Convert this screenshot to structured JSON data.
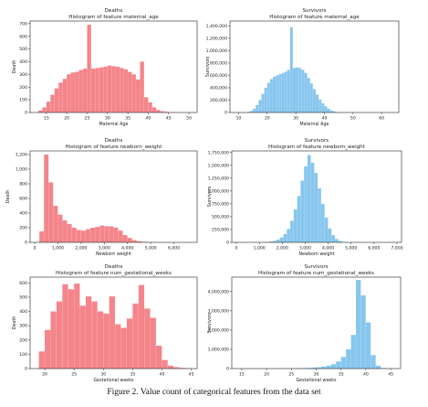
{
  "figure_caption": "Figure 2. Value count of categorical features from the data set",
  "colors": {
    "deaths": "#f4858a",
    "survivors": "#87c6ee",
    "axis": "#222222",
    "text": "#222222"
  },
  "chart_data": [
    {
      "type": "bar",
      "panel": "deaths-maternal-age",
      "title": "Deaths",
      "subtitle": "Histogram of feature maternal_age",
      "xlabel": "Maternal Age",
      "ylabel": "Death",
      "xlim": [
        11,
        52
      ],
      "ylim": [
        0,
        720
      ],
      "xticks": [
        15,
        20,
        25,
        30,
        35,
        40,
        45,
        50
      ],
      "xtick_labels": [
        "15",
        "20",
        "25",
        "30",
        "35",
        "40",
        "45",
        "50"
      ],
      "yticks": [
        0,
        100,
        200,
        300,
        400,
        500,
        600,
        700
      ],
      "ytick_labels": [
        "0",
        "100",
        "200",
        "300",
        "400",
        "500",
        "600",
        "700"
      ],
      "bin_start": 13,
      "bin_width": 1,
      "values": [
        15,
        40,
        85,
        140,
        190,
        235,
        265,
        300,
        315,
        320,
        335,
        345,
        690,
        345,
        350,
        355,
        360,
        370,
        365,
        360,
        350,
        340,
        320,
        300,
        260,
        400,
        120,
        80,
        40,
        20,
        10,
        5,
        2,
        1,
        0,
        0
      ]
    },
    {
      "type": "bar",
      "panel": "survivors-maternal-age",
      "title": "Survivors",
      "subtitle": "Histogram of feature maternal_age",
      "xlabel": "Maternal Age",
      "ylabel": "Survivors",
      "xlim": [
        7,
        66
      ],
      "ylim": [
        0,
        1480000
      ],
      "xticks": [
        10,
        20,
        30,
        40,
        50,
        60
      ],
      "xtick_labels": [
        "10",
        "20",
        "30",
        "40",
        "50",
        "60"
      ],
      "yticks": [
        0,
        200000,
        400000,
        600000,
        800000,
        1000000,
        1200000,
        1400000
      ],
      "ytick_labels": [
        "0",
        "200,000",
        "400,000",
        "600,000",
        "800,000",
        "1,000,000",
        "1,200,000",
        "1,400,000"
      ],
      "bin_start": 12,
      "bin_width": 1,
      "values": [
        2000,
        8000,
        25000,
        60000,
        120000,
        200000,
        300000,
        400000,
        480000,
        540000,
        580000,
        600000,
        620000,
        640000,
        660000,
        690000,
        1380000,
        720000,
        730000,
        720000,
        690000,
        640000,
        560000,
        470000,
        380000,
        290000,
        210000,
        150000,
        100000,
        60000,
        35000,
        18000,
        9000,
        4000,
        2000,
        1000,
        500,
        200,
        100,
        50,
        0,
        0,
        0,
        0,
        0,
        0,
        0,
        0
      ]
    },
    {
      "type": "bar",
      "panel": "deaths-newborn-weight",
      "title": "Deaths",
      "subtitle": "Histogram of feature newborn_weight",
      "xlabel": "Newborn weight",
      "ylabel": "Death",
      "xlim": [
        -200,
        7000
      ],
      "ylim": [
        0,
        1250
      ],
      "xticks": [
        0,
        1000,
        2000,
        3000,
        4000,
        5000,
        6000
      ],
      "xtick_labels": [
        "0",
        "1,000",
        "2,000",
        "3,000",
        "4,000",
        "5,000",
        "6,000"
      ],
      "yticks": [
        0,
        200,
        400,
        600,
        800,
        1000,
        1200
      ],
      "ytick_labels": [
        "0",
        "200",
        "400",
        "600",
        "800",
        "1,000",
        "1,200"
      ],
      "bin_start": 200,
      "bin_width": 200,
      "values": [
        150,
        1200,
        820,
        500,
        380,
        300,
        250,
        200,
        170,
        160,
        180,
        200,
        210,
        230,
        220,
        220,
        200,
        160,
        100,
        60,
        30,
        15,
        8,
        4,
        2,
        1,
        0,
        0,
        0,
        0,
        0,
        0
      ]
    },
    {
      "type": "bar",
      "panel": "survivors-newborn-weight",
      "title": "Survivors",
      "subtitle": "Histogram of feature newborn_weight",
      "xlabel": "Newborn weight",
      "ylabel": "Survivors",
      "xlim": [
        -200,
        7200
      ],
      "ylim": [
        0,
        1780000
      ],
      "xticks": [
        0,
        1000,
        2000,
        3000,
        4000,
        5000,
        6000,
        7000
      ],
      "xtick_labels": [
        "0",
        "1,000",
        "2,000",
        "3,000",
        "4,000",
        "5,000",
        "6,000",
        "7,000"
      ],
      "yticks": [
        0,
        250000,
        500000,
        750000,
        1000000,
        1250000,
        1500000,
        1750000
      ],
      "ytick_labels": [
        "0",
        "250,000",
        "500,000",
        "750,000",
        "1,000,000",
        "1,250,000",
        "1,500,000",
        "1,750,000"
      ],
      "bin_start": 1000,
      "bin_width": 150,
      "values": [
        3000,
        6000,
        10000,
        18000,
        30000,
        55000,
        95000,
        160000,
        260000,
        420000,
        640000,
        900000,
        1200000,
        1480000,
        1700000,
        1550000,
        1350000,
        1050000,
        750000,
        480000,
        270000,
        140000,
        65000,
        28000,
        10000,
        4000,
        1500,
        500,
        200,
        100
      ]
    },
    {
      "type": "bar",
      "panel": "deaths-gestational-weeks",
      "title": "Deaths",
      "subtitle": "Histogram of feature num_gestational_weeks",
      "xlabel": "Gestational weeks",
      "ylabel": "Death",
      "xlim": [
        17.5,
        46
      ],
      "ylim": [
        0,
        640
      ],
      "xticks": [
        20,
        25,
        30,
        35,
        40,
        45
      ],
      "xtick_labels": [
        "20",
        "25",
        "30",
        "35",
        "40",
        "45"
      ],
      "yticks": [
        0,
        100,
        200,
        300,
        400,
        500,
        600
      ],
      "ytick_labels": [
        "0",
        "100",
        "200",
        "300",
        "400",
        "500",
        "600"
      ],
      "bin_start": 19,
      "bin_width": 1,
      "values": [
        120,
        270,
        400,
        470,
        590,
        555,
        595,
        440,
        505,
        470,
        400,
        385,
        505,
        310,
        285,
        350,
        455,
        585,
        420,
        355,
        160,
        60,
        20,
        10,
        5,
        2
      ]
    },
    {
      "type": "bar",
      "panel": "survivors-gestational-weeks",
      "title": "Survivors",
      "subtitle": "Histogram of feature num_gestational_weeks",
      "xlabel": "Gestational weeks",
      "ylabel": "Survivors",
      "xlim": [
        13,
        47
      ],
      "ylim": [
        0,
        4750000
      ],
      "xticks": [
        15,
        20,
        25,
        30,
        35,
        40,
        45
      ],
      "xtick_labels": [
        "15",
        "20",
        "25",
        "30",
        "35",
        "40",
        "45"
      ],
      "yticks": [
        0,
        1000000,
        2000000,
        3000000,
        4000000
      ],
      "ytick_labels": [
        "0",
        "1,000,000",
        "2,000,000",
        "3,000,000",
        "4,000,000"
      ],
      "bin_start": 17,
      "bin_width": 1,
      "values": [
        5000,
        5000,
        5000,
        5000,
        6000,
        8000,
        10000,
        12000,
        15000,
        20000,
        25000,
        35000,
        50000,
        70000,
        100000,
        150000,
        230000,
        370000,
        600000,
        1000000,
        1750000,
        4600000,
        3800000,
        2400000,
        700000,
        150000,
        30000,
        8000,
        2000
      ]
    }
  ]
}
